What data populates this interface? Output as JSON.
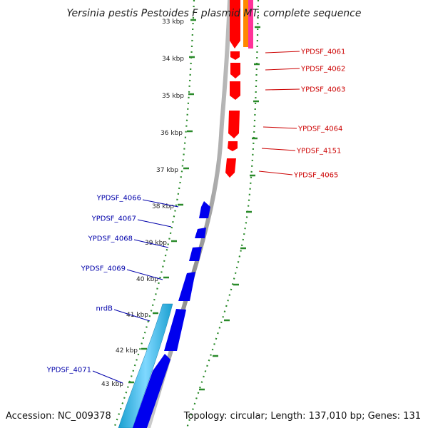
{
  "title": "Yersinia pestis Pestoides F plasmid MT, complete sequence",
  "footer": {
    "accession": "Accession: NC_009378",
    "summary": "Topology: circular; Length: 137,010 bp; Genes: 131"
  },
  "colors": {
    "forward_strand_gene": "#ff0000",
    "reverse_strand_gene": "#0000ee",
    "highlight_gene": "#33bbee",
    "orange_feature": "#ff8800",
    "pink_feature": "#ff3399",
    "backbone": "#888888",
    "tick": "#2a8a2a",
    "forward_label": "#cc0000",
    "reverse_label": "#0000aa"
  },
  "ruler_labels": [
    "33 kbp",
    "34 kbp",
    "35 kbp",
    "36 kbp",
    "37 kbp",
    "38 kbp",
    "39 kbp",
    "40 kbp",
    "41 kbp",
    "42 kbp",
    "43 kbp"
  ],
  "forward_genes": [
    {
      "label": "YPDSF_4061"
    },
    {
      "label": "YPDSF_4062"
    },
    {
      "label": "YPDSF_4063"
    },
    {
      "label": "YPDSF_4064"
    },
    {
      "label": "YPDSF_4151"
    },
    {
      "label": "YPDSF_4065"
    }
  ],
  "reverse_genes": [
    {
      "label": "YPDSF_4066"
    },
    {
      "label": "YPDSF_4067"
    },
    {
      "label": "YPDSF_4068"
    },
    {
      "label": "YPDSF_4069"
    },
    {
      "label": "nrdB"
    },
    {
      "label": "YPDSF_4071"
    }
  ]
}
